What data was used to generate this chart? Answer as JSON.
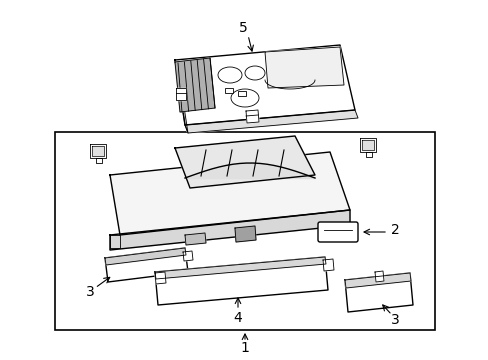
{
  "bg_color": "#ffffff",
  "line_color": "#000000",
  "fig_width": 4.89,
  "fig_height": 3.6,
  "dpi": 100,
  "font_size": 9,
  "font_size_large": 10
}
